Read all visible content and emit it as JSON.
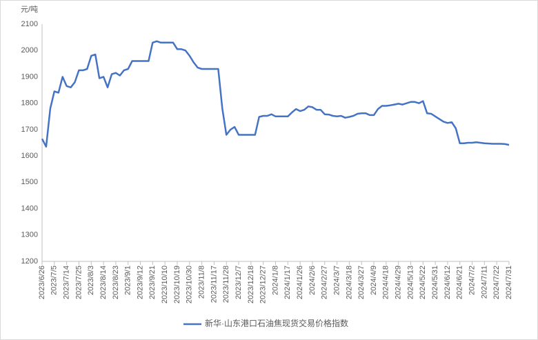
{
  "chart_data": {
    "type": "line",
    "y_unit": "元/吨",
    "categories": [
      "2023/6/26",
      null,
      null,
      "2023/7/5",
      null,
      null,
      "2023/7/14",
      null,
      null,
      "2023/7/25",
      null,
      null,
      "2023/8/3",
      null,
      null,
      "2023/8/14",
      null,
      null,
      "2023/8/23",
      null,
      null,
      "2023/9/1",
      null,
      null,
      "2023/9/12",
      null,
      null,
      "2023/9/21",
      null,
      null,
      "2023/10/10",
      null,
      null,
      "2023/10/19",
      null,
      null,
      "2023/10/30",
      null,
      null,
      "2023/11/8",
      null,
      null,
      "2023/11/17",
      null,
      null,
      "2023/11/28",
      null,
      null,
      "2023/12/7",
      null,
      null,
      "2023/12/18",
      null,
      null,
      "2023/12/27",
      null,
      null,
      "2024/1/8",
      null,
      null,
      "2024/1/17",
      null,
      null,
      "2024/1/26",
      null,
      null,
      "2024/2/6",
      null,
      null,
      "2024/2/27",
      null,
      null,
      "2024/3/7",
      null,
      null,
      "2024/3/18",
      null,
      null,
      "2024/3/27",
      null,
      null,
      "2024/4/9",
      null,
      null,
      "2024/4/18",
      null,
      null,
      "2024/4/29",
      null,
      null,
      "2024/5/13",
      null,
      null,
      "2024/5/22",
      null,
      null,
      "2024/5/31",
      null,
      null,
      "2024/6/12",
      null,
      null,
      "2024/6/21",
      null,
      null,
      "2024/7/2",
      null,
      null,
      "2024/7/11",
      null,
      null,
      "2024/7/22",
      null,
      null,
      "2024/7/31"
    ],
    "series": [
      {
        "name": "新华·山东港口石油焦现货交易价格指数",
        "color": "#4472c4",
        "values": [
          1665,
          1635,
          1780,
          1845,
          1840,
          1900,
          1865,
          1860,
          1880,
          1925,
          1925,
          1930,
          1980,
          1985,
          1895,
          1900,
          1860,
          1910,
          1915,
          1905,
          1925,
          1930,
          1960,
          1960,
          1960,
          1960,
          1960,
          2030,
          2035,
          2030,
          2030,
          2030,
          2030,
          2005,
          2005,
          2000,
          1980,
          1955,
          1935,
          1930,
          1930,
          1930,
          1930,
          1930,
          1780,
          1680,
          1700,
          1710,
          1680,
          1680,
          1680,
          1680,
          1680,
          1748,
          1752,
          1752,
          1758,
          1750,
          1750,
          1750,
          1750,
          1765,
          1778,
          1770,
          1775,
          1788,
          1785,
          1775,
          1775,
          1758,
          1757,
          1752,
          1750,
          1752,
          1745,
          1748,
          1752,
          1760,
          1762,
          1762,
          1755,
          1755,
          1778,
          1790,
          1790,
          1792,
          1795,
          1798,
          1795,
          1800,
          1805,
          1805,
          1800,
          1808,
          1762,
          1760,
          1750,
          1740,
          1730,
          1725,
          1728,
          1705,
          1648,
          1648,
          1650,
          1650,
          1652,
          1650,
          1648,
          1647,
          1646,
          1646,
          1646,
          1645,
          1642
        ]
      }
    ],
    "ylim": [
      1200,
      2100
    ],
    "yticks": [
      1200,
      1300,
      1400,
      1500,
      1600,
      1700,
      1800,
      1900,
      2000,
      2100
    ],
    "grid": false,
    "legend": "bottom"
  }
}
